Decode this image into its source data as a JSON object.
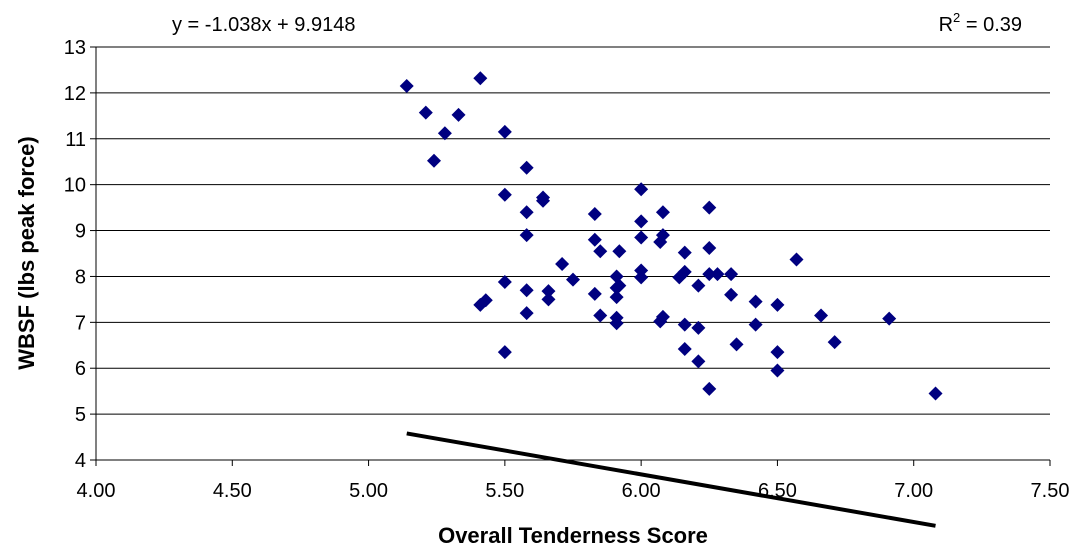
{
  "chart_data": {
    "type": "scatter",
    "xlabel": "Overall Tenderness Score",
    "ylabel": "WBSF (lbs peak force)",
    "xlim": [
      4.0,
      7.5
    ],
    "ylim": [
      4,
      13
    ],
    "x_ticks": [
      "4.00",
      "4.50",
      "5.00",
      "5.50",
      "6.00",
      "6.50",
      "7.00",
      "7.50"
    ],
    "y_ticks": [
      "4",
      "5",
      "6",
      "7",
      "8",
      "9",
      "10",
      "11",
      "12",
      "13"
    ],
    "grid": "horizontal",
    "legend": "none",
    "marker": "diamond",
    "marker_color": "#000080",
    "trendline": {
      "equation": "y = -1.038x + 9.9148",
      "r2_prefix": "R",
      "r2_exponent": "2",
      "r2_value": " = 0.39",
      "slope": -1.038,
      "intercept": 9.9148,
      "x_range": [
        5.14,
        7.08
      ],
      "color": "#000000"
    },
    "points": [
      [
        5.14,
        12.15
      ],
      [
        5.21,
        11.57
      ],
      [
        5.24,
        10.52
      ],
      [
        5.28,
        11.12
      ],
      [
        5.33,
        11.52
      ],
      [
        5.41,
        12.32
      ],
      [
        5.41,
        7.38
      ],
      [
        5.43,
        7.48
      ],
      [
        5.5,
        11.15
      ],
      [
        5.5,
        9.78
      ],
      [
        5.5,
        7.88
      ],
      [
        5.5,
        6.35
      ],
      [
        5.58,
        10.37
      ],
      [
        5.58,
        9.4
      ],
      [
        5.58,
        8.9
      ],
      [
        5.58,
        7.7
      ],
      [
        5.58,
        7.2
      ],
      [
        5.64,
        9.72
      ],
      [
        5.64,
        9.65
      ],
      [
        5.66,
        7.68
      ],
      [
        5.66,
        7.5
      ],
      [
        5.71,
        8.27
      ],
      [
        5.75,
        7.93
      ],
      [
        5.83,
        9.36
      ],
      [
        5.83,
        8.8
      ],
      [
        5.83,
        7.62
      ],
      [
        5.85,
        8.55
      ],
      [
        5.85,
        7.15
      ],
      [
        5.91,
        8.0
      ],
      [
        5.91,
        7.75
      ],
      [
        5.91,
        7.55
      ],
      [
        5.91,
        7.1
      ],
      [
        5.91,
        6.98
      ],
      [
        5.92,
        8.55
      ],
      [
        5.92,
        7.8
      ],
      [
        6.0,
        9.9
      ],
      [
        6.0,
        9.2
      ],
      [
        6.0,
        8.85
      ],
      [
        6.0,
        8.13
      ],
      [
        6.0,
        7.98
      ],
      [
        6.07,
        8.75
      ],
      [
        6.07,
        7.02
      ],
      [
        6.08,
        9.4
      ],
      [
        6.08,
        8.9
      ],
      [
        6.08,
        7.12
      ],
      [
        6.14,
        7.98
      ],
      [
        6.16,
        8.52
      ],
      [
        6.16,
        8.1
      ],
      [
        6.16,
        6.95
      ],
      [
        6.16,
        6.42
      ],
      [
        6.21,
        7.8
      ],
      [
        6.21,
        6.88
      ],
      [
        6.21,
        6.15
      ],
      [
        6.25,
        9.5
      ],
      [
        6.25,
        8.62
      ],
      [
        6.25,
        8.05
      ],
      [
        6.25,
        5.55
      ],
      [
        6.28,
        8.05
      ],
      [
        6.33,
        8.05
      ],
      [
        6.33,
        7.6
      ],
      [
        6.35,
        6.52
      ],
      [
        6.42,
        7.45
      ],
      [
        6.42,
        6.95
      ],
      [
        6.5,
        7.38
      ],
      [
        6.5,
        6.35
      ],
      [
        6.5,
        5.95
      ],
      [
        6.57,
        8.37
      ],
      [
        6.66,
        7.15
      ],
      [
        6.71,
        6.57
      ],
      [
        6.91,
        7.08
      ],
      [
        7.08,
        5.45
      ]
    ]
  }
}
